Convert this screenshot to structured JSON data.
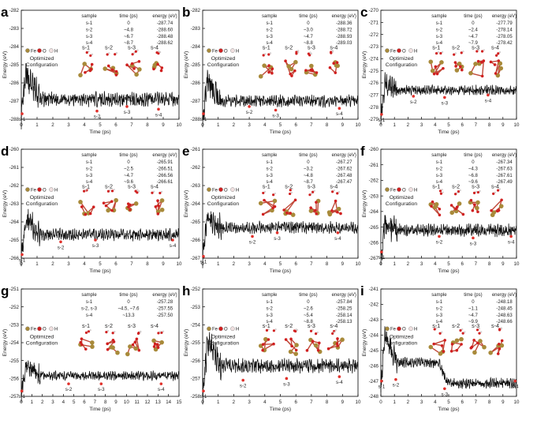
{
  "figure": {
    "ylabel": "Energy (eV)",
    "xlabel": "Time (ps)",
    "table_headers": [
      "sample",
      "time (ps)",
      "energy (eV)"
    ],
    "legend": [
      "Fe",
      "O",
      "H"
    ],
    "config_label_1": "Optimized",
    "config_label_2": "Configuration",
    "sample_names": [
      "s-1",
      "s-2",
      "s-3",
      "s-4"
    ],
    "colors": {
      "line": "#111111",
      "marker": "#e0302a",
      "fe": "#a88a3a",
      "o": "#d02020",
      "h": "#f0e0e0"
    }
  },
  "chart_data": [
    {
      "panel": "a",
      "type": "line",
      "xlim": [
        0,
        10
      ],
      "ylim": [
        -288,
        -282
      ],
      "xticks": [
        "0",
        "1",
        "2",
        "3",
        "4",
        "5",
        "6",
        "7",
        "8",
        "9",
        "10"
      ],
      "yticks": [
        "-288",
        "-287",
        "-286",
        "-285",
        "-284",
        "-283",
        "-282"
      ],
      "table": [
        [
          "s-1",
          "0",
          "-287.74"
        ],
        [
          "s-2",
          "~4.8",
          "-288.60"
        ],
        [
          "s-3",
          "~6.7",
          "-288.48"
        ],
        [
          "s-4",
          "~8.7",
          "-288.62"
        ]
      ],
      "markers": [
        {
          "label": "s-1",
          "x": 0.05,
          "y": -287.7
        },
        {
          "label": "s-2",
          "x": 4.8,
          "y": -287.55
        },
        {
          "label": "s-3",
          "x": 6.7,
          "y": -287.3
        },
        {
          "label": "s-4",
          "x": 8.7,
          "y": -287.45
        }
      ],
      "trace": {
        "start": -287.9,
        "min": -287.7,
        "peak": -285.6,
        "plateau": -286.9,
        "noise": 0.3
      }
    },
    {
      "panel": "b",
      "type": "line",
      "xlim": [
        0,
        10
      ],
      "ylim": [
        -288,
        -282
      ],
      "xticks": [
        "0",
        "1",
        "2",
        "3",
        "4",
        "5",
        "6",
        "7",
        "8",
        "9",
        "10"
      ],
      "yticks": [
        "-288",
        "-287",
        "-286",
        "-285",
        "-284",
        "-283",
        "-282"
      ],
      "table": [
        [
          "s-1",
          "0",
          "-288.36"
        ],
        [
          "s-2",
          "~3.0",
          "-288.72"
        ],
        [
          "s-3",
          "~4.7",
          "-288.93"
        ],
        [
          "s-4",
          "~8.8",
          "-289.03"
        ]
      ],
      "markers": [
        {
          "label": "s-1",
          "x": 0.05,
          "y": -287.7
        },
        {
          "label": "s-2",
          "x": 3.0,
          "y": -287.3
        },
        {
          "label": "s-3",
          "x": 4.7,
          "y": -287.5
        },
        {
          "label": "s-4",
          "x": 8.8,
          "y": -287.4
        }
      ],
      "trace": {
        "start": -287.9,
        "min": -287.7,
        "peak": -285.9,
        "plateau": -287.0,
        "noise": 0.25
      }
    },
    {
      "panel": "c",
      "type": "line",
      "xlim": [
        0,
        10
      ],
      "ylim": [
        -279,
        -270
      ],
      "xticks": [
        "0",
        "1",
        "2",
        "3",
        "4",
        "5",
        "6",
        "7",
        "8",
        "9",
        "10"
      ],
      "yticks": [
        "-279",
        "-278",
        "-277",
        "-276",
        "-275",
        "-274",
        "-273",
        "-272",
        "-271",
        "-270"
      ],
      "table": [
        [
          "s-1",
          "0",
          "-277.79"
        ],
        [
          "s-2",
          "~2.4",
          "-278.14"
        ],
        [
          "s-3",
          "~4.7",
          "-278.05"
        ],
        [
          "s-4",
          "~7.9",
          "-278.42"
        ]
      ],
      "markers": [
        {
          "label": "s-1",
          "x": 0.05,
          "y": -278.6
        },
        {
          "label": "s-2",
          "x": 2.4,
          "y": -277.1
        },
        {
          "label": "s-3",
          "x": 4.7,
          "y": -277.2
        },
        {
          "label": "s-4",
          "x": 7.9,
          "y": -277.0
        }
      ],
      "trace": {
        "start": -278.8,
        "min": -278.6,
        "peak": -276.0,
        "plateau": -276.6,
        "noise": 0.3
      }
    },
    {
      "panel": "d",
      "type": "line",
      "xlim": [
        0,
        10
      ],
      "ylim": [
        -266,
        -260
      ],
      "xticks": [
        "0",
        "1",
        "2",
        "3",
        "4",
        "5",
        "6",
        "7",
        "8",
        "9",
        "10"
      ],
      "yticks": [
        "-266",
        "-265",
        "-264",
        "-263",
        "-262",
        "-261",
        "-260"
      ],
      "table": [
        [
          "s-1",
          "0",
          "-265.91"
        ],
        [
          "s-2",
          "~2.5",
          "-266.51"
        ],
        [
          "s-3",
          "~4.7",
          "-266.56"
        ],
        [
          "s-4",
          "~9.6",
          "-266.61"
        ]
      ],
      "markers": [
        {
          "label": "s-1",
          "x": 0.05,
          "y": -265.8
        },
        {
          "label": "s-2",
          "x": 2.5,
          "y": -265.1
        },
        {
          "label": "s-3",
          "x": 4.7,
          "y": -265.0
        },
        {
          "label": "s-4",
          "x": 9.6,
          "y": -265.0
        }
      ],
      "trace": {
        "start": -265.9,
        "min": -265.8,
        "peak": -263.8,
        "plateau": -264.7,
        "noise": 0.25
      }
    },
    {
      "panel": "e",
      "type": "line",
      "xlim": [
        0,
        10
      ],
      "ylim": [
        -267,
        -261
      ],
      "xticks": [
        "0",
        "1",
        "2",
        "3",
        "4",
        "5",
        "6",
        "7",
        "8",
        "9",
        "10"
      ],
      "yticks": [
        "-267",
        "-266",
        "-265",
        "-264",
        "-263",
        "-262",
        "-261"
      ],
      "table": [
        [
          "s-1",
          "0",
          "-267.27"
        ],
        [
          "s-2",
          "~3.2",
          "-267.62"
        ],
        [
          "s-3",
          "~4.8",
          "-267.48"
        ],
        [
          "s-4",
          "~8.7",
          "-267.47"
        ]
      ],
      "markers": [
        {
          "label": "s-1",
          "x": 0.05,
          "y": -266.9
        },
        {
          "label": "s-2",
          "x": 3.2,
          "y": -265.8
        },
        {
          "label": "s-3",
          "x": 4.8,
          "y": -265.6
        },
        {
          "label": "s-4",
          "x": 8.7,
          "y": -265.6
        }
      ],
      "trace": {
        "start": -267.0,
        "min": -266.9,
        "peak": -264.6,
        "plateau": -265.3,
        "noise": 0.25
      }
    },
    {
      "panel": "f",
      "type": "line",
      "xlim": [
        0,
        10
      ],
      "ylim": [
        -267,
        -260
      ],
      "xticks": [
        "0",
        "1",
        "2",
        "3",
        "4",
        "5",
        "6",
        "7",
        "8",
        "9",
        "10"
      ],
      "yticks": [
        "-267",
        "-266",
        "-265",
        "-264",
        "-263",
        "-262",
        "-261",
        "-260"
      ],
      "table": [
        [
          "s-1",
          "0",
          "-267.34"
        ],
        [
          "s-2",
          "~4.3",
          "-267.63"
        ],
        [
          "s-3",
          "~6.8",
          "-267.61"
        ],
        [
          "s-4",
          "~9.6",
          "-267.49"
        ]
      ],
      "markers": [
        {
          "label": "s-1",
          "x": 0.05,
          "y": -266.6
        },
        {
          "label": "s-2",
          "x": 4.3,
          "y": -265.6
        },
        {
          "label": "s-3",
          "x": 6.8,
          "y": -265.7
        },
        {
          "label": "s-4",
          "x": 9.6,
          "y": -265.6
        }
      ],
      "trace": {
        "start": -266.8,
        "min": -266.6,
        "peak": -264.8,
        "plateau": -265.2,
        "noise": 0.3
      }
    },
    {
      "panel": "g",
      "type": "line",
      "xlim": [
        0,
        15
      ],
      "ylim": [
        -257,
        -251
      ],
      "xticks": [
        "0",
        "1",
        "2",
        "3",
        "4",
        "5",
        "6",
        "7",
        "8",
        "9",
        "10",
        "11",
        "12",
        "13",
        "14",
        "15"
      ],
      "yticks": [
        "-257",
        "-256",
        "-255",
        "-254",
        "-253",
        "-252",
        "-251"
      ],
      "table": [
        [
          "s-1",
          "0",
          "-257.28"
        ],
        [
          "s-2, s-3",
          "~4.5, ~7.6",
          "-257.55"
        ],
        [
          "s-4",
          "~13.3",
          "-257.50"
        ]
      ],
      "markers": [
        {
          "label": "s-1",
          "x": 0.05,
          "y": -256.7
        },
        {
          "label": "s-2",
          "x": 4.5,
          "y": -256.3
        },
        {
          "label": "s-3",
          "x": 7.6,
          "y": -256.3
        },
        {
          "label": "s-4",
          "x": 13.3,
          "y": -256.3
        }
      ],
      "trace": {
        "start": -256.9,
        "min": -256.7,
        "peak": -255.2,
        "plateau": -255.85,
        "noise": 0.2
      }
    },
    {
      "panel": "h",
      "type": "line",
      "xlim": [
        0,
        10
      ],
      "ylim": [
        -258,
        -252
      ],
      "xticks": [
        "0",
        "1",
        "2",
        "3",
        "4",
        "5",
        "6",
        "7",
        "8",
        "9",
        "10"
      ],
      "yticks": [
        "-258",
        "-257",
        "-256",
        "-255",
        "-254",
        "-253",
        "-252"
      ],
      "table": [
        [
          "s-1",
          "0",
          "-257.84"
        ],
        [
          "s-2",
          "~2.6",
          "-258.25"
        ],
        [
          "s-3",
          "~5.4",
          "-258.14"
        ],
        [
          "s-4",
          "~8.8",
          "-258.13"
        ]
      ],
      "markers": [
        {
          "label": "s-1",
          "x": 0.05,
          "y": -257.7
        },
        {
          "label": "s-2",
          "x": 2.6,
          "y": -257.1
        },
        {
          "label": "s-3",
          "x": 5.4,
          "y": -257.0
        },
        {
          "label": "s-4",
          "x": 8.8,
          "y": -256.9
        }
      ],
      "trace": {
        "start": -257.8,
        "min": -257.7,
        "peak": -255.0,
        "plateau": -256.3,
        "noise": 0.3
      }
    },
    {
      "panel": "i",
      "type": "line",
      "xlim": [
        0,
        10
      ],
      "ylim": [
        -248,
        -241
      ],
      "xticks": [
        "0",
        "1",
        "2",
        "3",
        "4",
        "5",
        "6",
        "7",
        "8",
        "9",
        "10"
      ],
      "yticks": [
        "-248",
        "-247",
        "-246",
        "-245",
        "-244",
        "-243",
        "-242",
        "-241"
      ],
      "table": [
        [
          "s-1",
          "0",
          "-248.18"
        ],
        [
          "s-2",
          "~1.1",
          "-248.45"
        ],
        [
          "s-3",
          "~4.7",
          "-248.63"
        ],
        [
          "s-4",
          "~9.9",
          "-248.66"
        ]
      ],
      "markers": [
        {
          "label": "s-1",
          "x": 0.05,
          "y": -247.0
        },
        {
          "label": "s-2",
          "x": 1.1,
          "y": -246.9
        },
        {
          "label": "s-3",
          "x": 4.7,
          "y": -247.5
        },
        {
          "label": "s-4",
          "x": 9.9,
          "y": -247.0
        }
      ],
      "trace": {
        "start": -247.2,
        "min": -247.0,
        "peak": -244.0,
        "plateau": -245.8,
        "step_x": 4.3,
        "plateau2": -247.15,
        "noise": 0.25
      }
    }
  ]
}
